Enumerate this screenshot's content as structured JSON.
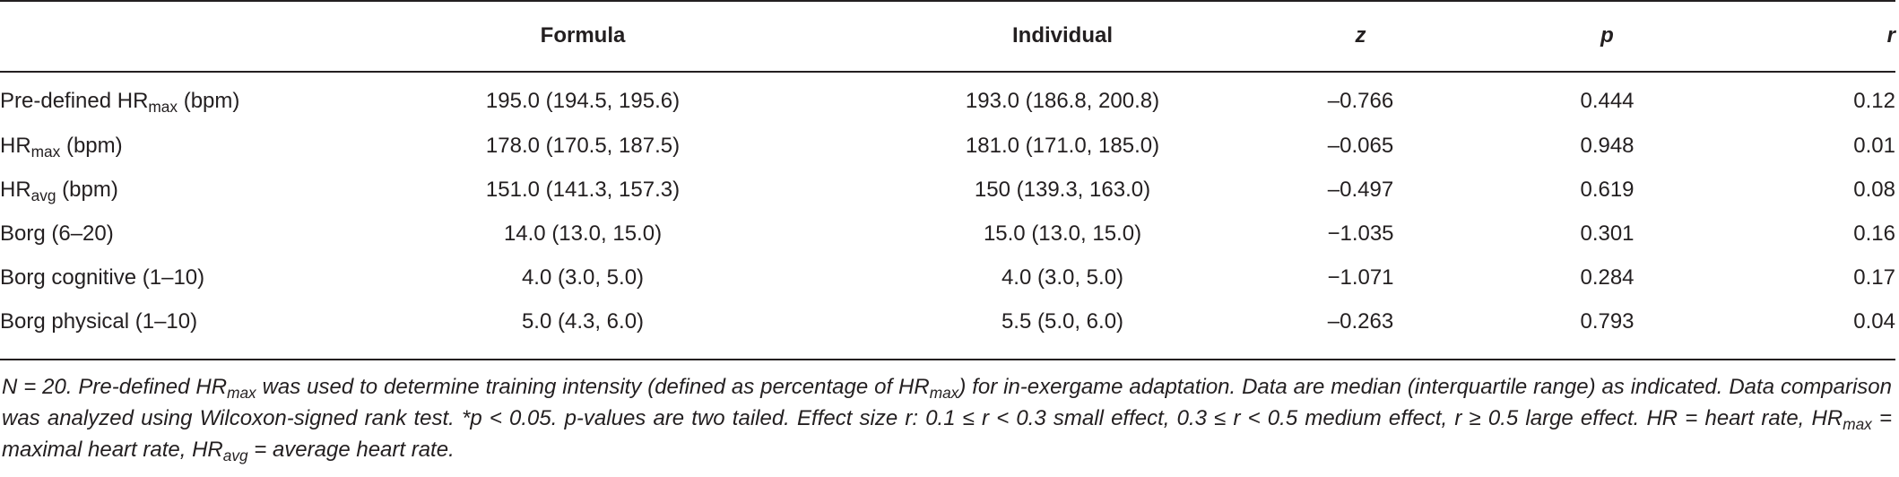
{
  "table": {
    "columns": {
      "variable": "",
      "formula": "Formula",
      "individual": "Individual",
      "z": "z",
      "p": "p",
      "r": "r"
    },
    "rows": [
      {
        "label_main": "Pre-defined HR",
        "label_sub": "max",
        "label_tail": " (bpm)",
        "formula": "195.0 (194.5, 195.6)",
        "individual": "193.0 (186.8, 200.8)",
        "z": "–0.766",
        "p": "0.444",
        "r": "0.12"
      },
      {
        "label_main": "HR",
        "label_sub": "max",
        "label_tail": " (bpm)",
        "formula": "178.0 (170.5, 187.5)",
        "individual": "181.0 (171.0, 185.0)",
        "z": "–0.065",
        "p": "0.948",
        "r": "0.01"
      },
      {
        "label_main": "HR",
        "label_sub": "avg",
        "label_tail": " (bpm)",
        "formula": "151.0 (141.3, 157.3)",
        "individual": "150 (139.3, 163.0)",
        "z": "–0.497",
        "p": "0.619",
        "r": "0.08"
      },
      {
        "label_main": "Borg (6–20)",
        "label_sub": "",
        "label_tail": "",
        "formula": "14.0 (13.0, 15.0)",
        "individual": "15.0 (13.0, 15.0)",
        "z": "−1.035",
        "p": "0.301",
        "r": "0.16"
      },
      {
        "label_main": "Borg cognitive (1–10)",
        "label_sub": "",
        "label_tail": "",
        "formula": "4.0 (3.0, 5.0)",
        "individual": "4.0 (3.0, 5.0)",
        "z": "−1.071",
        "p": "0.284",
        "r": "0.17"
      },
      {
        "label_main": "Borg physical (1–10)",
        "label_sub": "",
        "label_tail": "",
        "formula": "5.0 (4.3, 6.0)",
        "individual": "5.5 (5.0, 6.0)",
        "z": "–0.263",
        "p": "0.793",
        "r": "0.04"
      }
    ]
  },
  "footnote": {
    "t1": "N = 20. Pre-defined HR",
    "s1": "max",
    "t2": " was used to determine training intensity (defined as percentage of HR",
    "s2": "max",
    "t3": ") for in-exergame adaptation. Data are median (interquartile range) as indicated. Data comparison was analyzed using Wilcoxon-signed rank test. *p < 0.05. p-values are two tailed. Effect size r: 0.1 ≤ r < 0.3 small effect, 0.3 ≤ r < 0.5 medium effect, r ≥ 0.5 large effect. HR = heart rate, HR",
    "s3": "max",
    "t4": " = maximal heart rate, HR",
    "s4": "avg",
    "t5": " = average heart rate."
  }
}
